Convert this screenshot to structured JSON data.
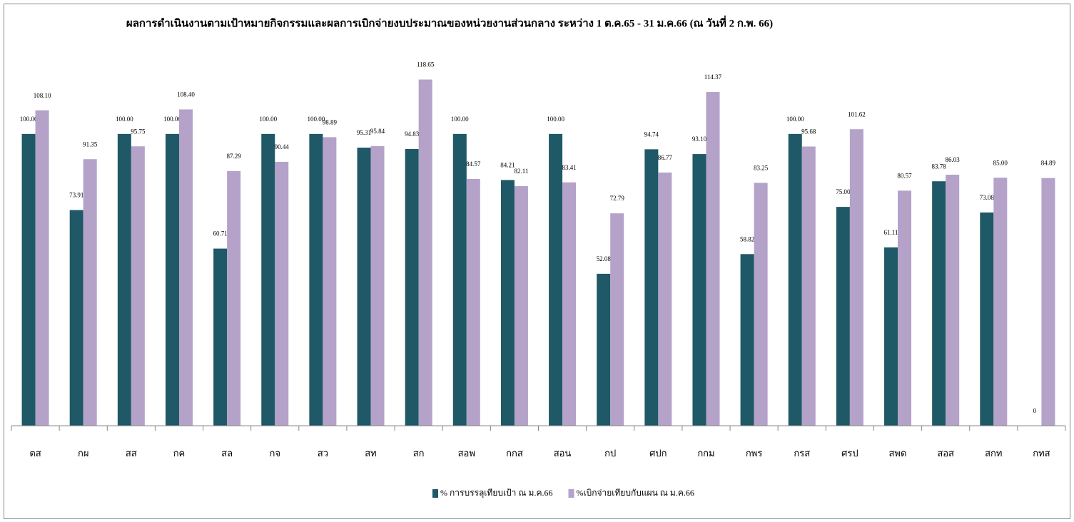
{
  "chart_data": {
    "type": "bar",
    "title": "ผลการดำเนินงานตามเป้าหมายกิจกรรมและผลการเบิกจ่ายงบประมาณของหน่วยงานส่วนกลาง ระหว่าง 1 ต.ค.65 - 31 ม.ค.66 (ณ วันที่ 2 ก.พ. 66)",
    "categories": [
      "ตส",
      "กผ",
      "สส",
      "กค",
      "สล",
      "กจ",
      "สว",
      "สท",
      "สก",
      "สอพ",
      "กกส",
      "สอน",
      "กป",
      "ศปก",
      "กกม",
      "กพร",
      "กรส",
      "ศรป",
      "สพด",
      "สอส",
      "สกท",
      "กทส"
    ],
    "series": [
      {
        "name": "% การบรรลุเทียบเป้า ณ ม.ค.66",
        "color": "#1f5866",
        "values": [
          100,
          73.91,
          100,
          100,
          60.71,
          100,
          100,
          95.31,
          94.83,
          100,
          84.21,
          100,
          52.08,
          94.74,
          93.1,
          58.82,
          100,
          75,
          61.11,
          83.78,
          73.08,
          0
        ],
        "value_labels": [
          "100.00",
          "73.91",
          "100.00",
          "100.00",
          "60.71",
          "100.00",
          "100.00",
          "95.31",
          "94.83",
          "100.00",
          "84.21",
          "100.00",
          "52.08",
          "94.74",
          "93.10",
          "58.82",
          "100.00",
          "75.00",
          "61.11",
          "83.78",
          "73.08",
          "0"
        ]
      },
      {
        "name": "%เบิกจ่ายเทียบกับแผน ณ ม.ค.66",
        "color": "#b4a2c9",
        "values": [
          108.1,
          91.35,
          95.75,
          108.4,
          87.29,
          90.44,
          98.89,
          95.84,
          118.65,
          84.57,
          82.11,
          83.41,
          72.79,
          86.77,
          114.37,
          83.25,
          95.68,
          101.62,
          80.57,
          86.03,
          85,
          84.89
        ],
        "value_labels": [
          "108.10",
          "91.35",
          "95.75",
          "108.40",
          "87.29",
          "90.44",
          "98.89",
          "95.84",
          "118.65",
          "84.57",
          "82.11",
          "83.41",
          "72.79",
          "86.77",
          "114.37",
          "83.25",
          "95.68",
          "101.62",
          "80.57",
          "86.03",
          "85.00",
          "84.89"
        ]
      }
    ],
    "ylim": [
      0,
      120
    ],
    "legend": "bottom"
  }
}
